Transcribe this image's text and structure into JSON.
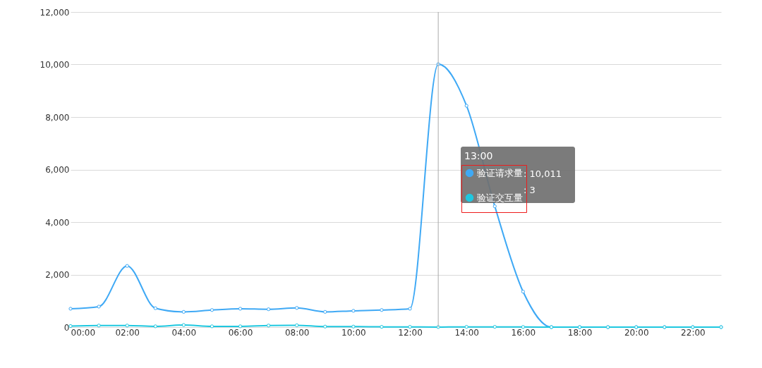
{
  "chart_data": {
    "type": "line",
    "x": [
      0,
      1,
      2,
      3,
      4,
      5,
      6,
      7,
      8,
      9,
      10,
      11,
      12,
      13,
      14,
      15,
      16,
      17,
      18,
      19,
      20,
      21,
      22,
      23
    ],
    "series": [
      {
        "name": "验证请求量",
        "color": "#3fa9f5",
        "values": [
          700,
          780,
          2330,
          720,
          580,
          650,
          700,
          680,
          730,
          580,
          620,
          650,
          700,
          10011,
          8430,
          4600,
          1350,
          0,
          0,
          0,
          0,
          0,
          0,
          0
        ]
      },
      {
        "name": "验证交互量",
        "color": "#1ec8e0",
        "values": [
          40,
          60,
          60,
          30,
          80,
          30,
          30,
          60,
          70,
          20,
          20,
          10,
          10,
          3,
          10,
          10,
          5,
          0,
          0,
          0,
          0,
          0,
          0,
          0
        ]
      }
    ],
    "xlim": [
      0,
      23
    ],
    "xticks": [
      {
        "value": 0,
        "label": "00:00"
      },
      {
        "value": 2,
        "label": "02:00"
      },
      {
        "value": 4,
        "label": "04:00"
      },
      {
        "value": 6,
        "label": "06:00"
      },
      {
        "value": 8,
        "label": "08:00"
      },
      {
        "value": 10,
        "label": "10:00"
      },
      {
        "value": 12,
        "label": "12:00"
      },
      {
        "value": 14,
        "label": "14:00"
      },
      {
        "value": 16,
        "label": "16:00"
      },
      {
        "value": 18,
        "label": "18:00"
      },
      {
        "value": 20,
        "label": "20:00"
      },
      {
        "value": 22,
        "label": "22:00"
      }
    ],
    "ylim": [
      0,
      12000
    ],
    "yticks": [
      0,
      {
        "value": 2000,
        "label": "2,000"
      },
      {
        "value": 4000,
        "label": "4,000"
      },
      {
        "value": 6000,
        "label": "6,000"
      },
      {
        "value": 8000,
        "label": "8,000"
      },
      {
        "value": 10000,
        "label": "10,000"
      },
      {
        "value": 12000,
        "label": "12,000"
      }
    ],
    "ref_lines": [
      {
        "axis": "x",
        "value": 13,
        "color": "#aaaaaa"
      }
    ],
    "annotations": [
      "13:00",
      ": 10,011",
      ": 3"
    ],
    "grid": "y",
    "legend": "center",
    "marker": "circle",
    "line_style": "solid"
  }
}
